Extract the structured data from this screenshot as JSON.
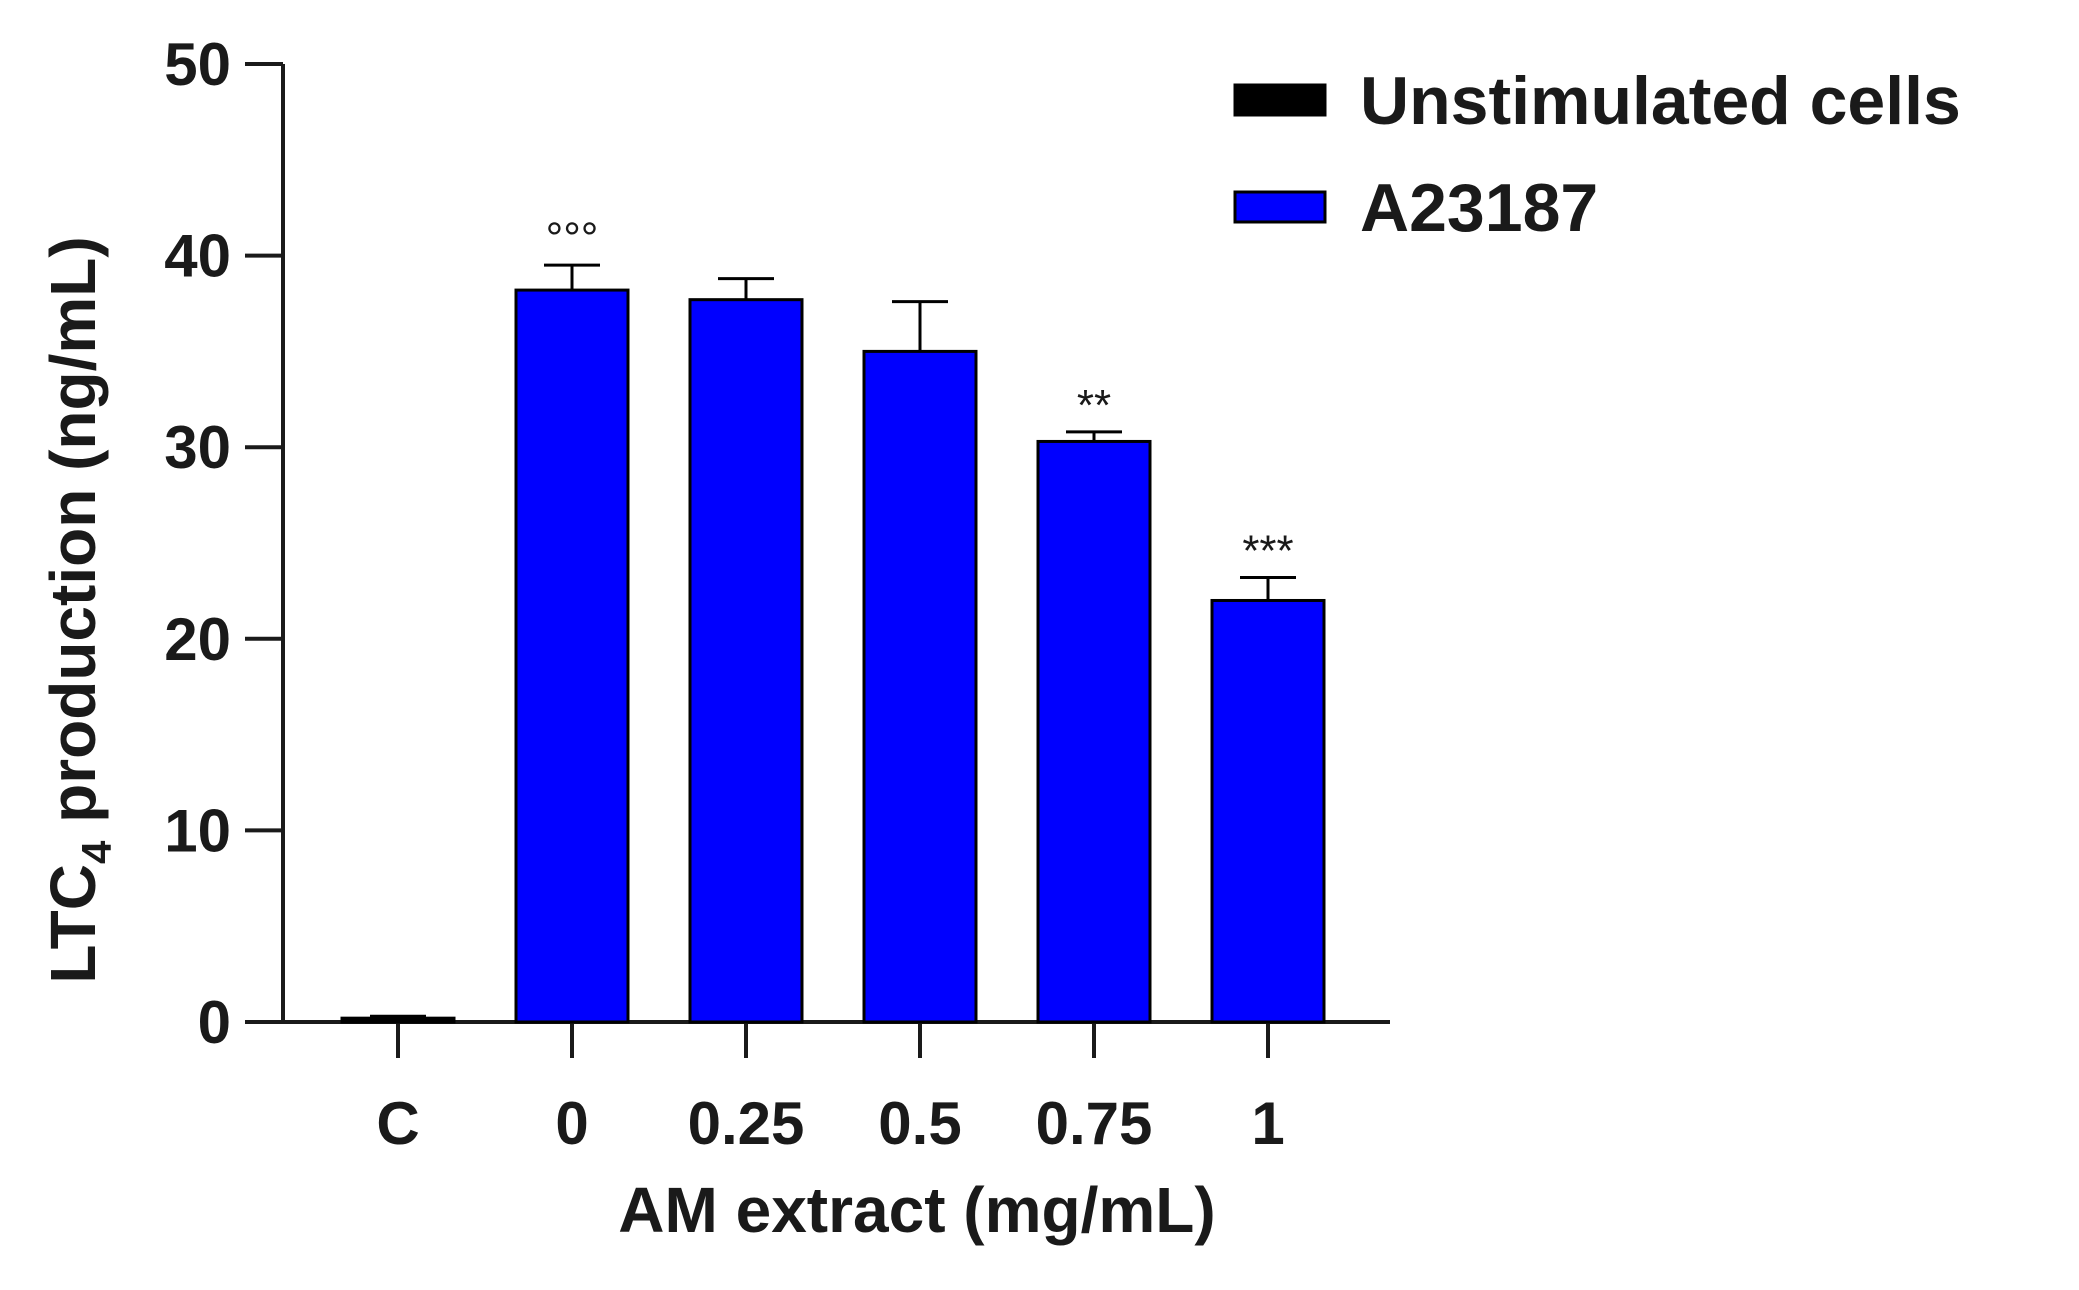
{
  "chart_data": {
    "type": "bar",
    "categories": [
      "C",
      "0",
      "0.25",
      "0.5",
      "0.75",
      "1"
    ],
    "series": [
      {
        "name": "Unstimulated cells",
        "color": "#000000",
        "values": [
          0.2,
          null,
          null,
          null,
          null,
          null
        ],
        "errors": [
          0.1,
          null,
          null,
          null,
          null,
          null
        ]
      },
      {
        "name": "A23187",
        "color": "#0000ff",
        "values": [
          null,
          38.2,
          37.7,
          35.0,
          30.3,
          22.0
        ],
        "errors": [
          null,
          1.3,
          1.1,
          2.6,
          0.5,
          1.2
        ]
      }
    ],
    "annotations": [
      "",
      "°°°",
      "",
      "",
      "**",
      "***"
    ],
    "xlabel": "AM extract (mg/mL)",
    "ylabel": {
      "main": "LTC",
      "subscript": "4",
      "rest": " production (ng/mL)"
    },
    "ylim": [
      0,
      50
    ],
    "yticks": [
      "0",
      "10",
      "20",
      "30",
      "40",
      "50"
    ],
    "grid": false,
    "legend_position": "top-right"
  }
}
